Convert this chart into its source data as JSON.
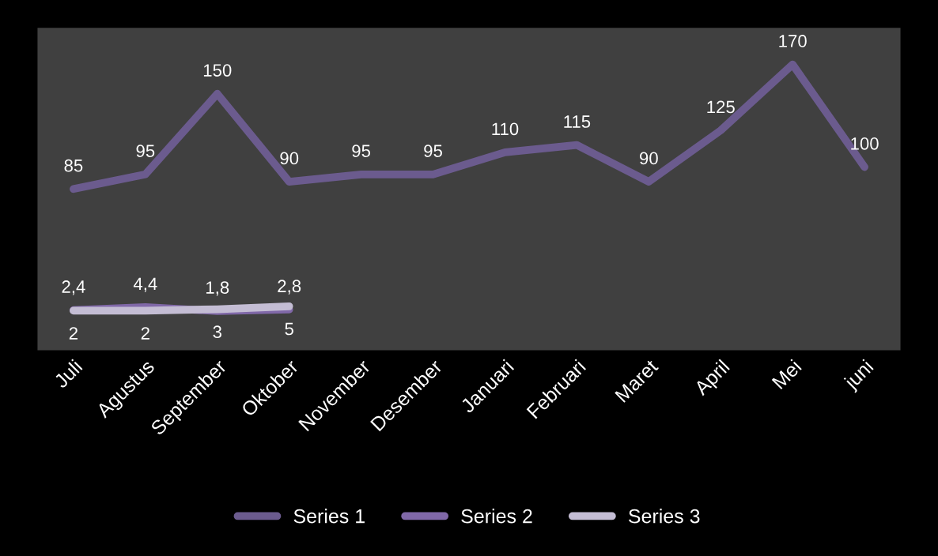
{
  "chart_data": {
    "type": "line",
    "categories": [
      "Juli",
      "Agustus",
      "September",
      "Oktober",
      "November",
      "Desember",
      "Januari",
      "Februari",
      "Maret",
      "April",
      "Mei",
      "juni"
    ],
    "series": [
      {
        "name": "Series 1",
        "color": "#6b5b8e",
        "values": [
          85,
          95,
          150,
          90,
          95,
          95,
          110,
          115,
          90,
          125,
          170,
          100
        ],
        "value_labels": [
          "85",
          "95",
          "150",
          "90",
          "95",
          "95",
          "110",
          "115",
          "90",
          "125",
          "170",
          "100"
        ]
      },
      {
        "name": "Series 2",
        "color": "#8068a8",
        "values": [
          2.4,
          4.4,
          1.8,
          2.8,
          null,
          null,
          null,
          null,
          null,
          null,
          null,
          null
        ],
        "value_labels": [
          "2,4",
          "4,4",
          "1,8",
          "2,8",
          null,
          null,
          null,
          null,
          null,
          null,
          null,
          null
        ]
      },
      {
        "name": "Series 3",
        "color": "#c4bdd4",
        "values": [
          2,
          2,
          3,
          5,
          null,
          null,
          null,
          null,
          null,
          null,
          null,
          null
        ],
        "value_labels": [
          "2",
          "2",
          "3",
          "5",
          null,
          null,
          null,
          null,
          null,
          null,
          null,
          null
        ]
      }
    ],
    "ylim": [
      -25,
      195
    ],
    "tick_labels": "x",
    "grid": false,
    "legend": "bottom",
    "marker": "none",
    "line_style": "solid"
  }
}
